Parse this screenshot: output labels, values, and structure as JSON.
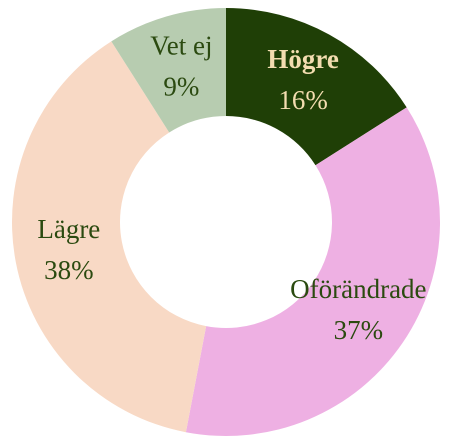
{
  "chart_data": {
    "type": "donut",
    "categories": [
      "Högre",
      "Oförändrade",
      "Lägre",
      "Vet ej"
    ],
    "values": [
      16,
      37,
      38,
      9
    ],
    "value_labels": [
      "16%",
      "37%",
      "38%",
      "9%"
    ],
    "colors": [
      "#1f3f06",
      "#eeb0e3",
      "#f8d9c5",
      "#b7ccb0"
    ],
    "label_colors": [
      "#f3ddb0",
      "#2b4a10",
      "#2b4a10",
      "#2b4a10"
    ]
  }
}
